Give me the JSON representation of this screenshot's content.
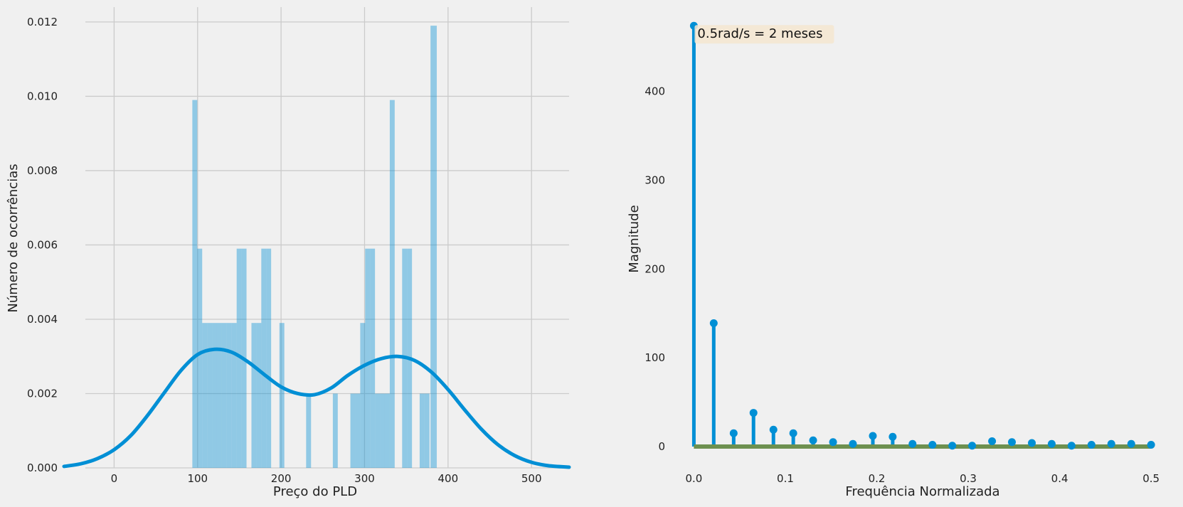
{
  "chart_data": [
    {
      "type": "bar",
      "subtype": "histogram-with-kde",
      "title": "",
      "xlabel": "Preço do PLD",
      "ylabel": "Número de ocorrências",
      "xlim": [
        -60,
        545
      ],
      "ylim": [
        0,
        0.0124
      ],
      "xticks": [
        0,
        100,
        200,
        300,
        400,
        500
      ],
      "xtick_labels": [
        "0",
        "100",
        "200",
        "300",
        "400",
        "500"
      ],
      "yticks": [
        0,
        0.002,
        0.004,
        0.006,
        0.008,
        0.01,
        0.012
      ],
      "ytick_labels": [
        "0.000",
        "0.002",
        "0.004",
        "0.006",
        "0.008",
        "0.010",
        "0.012"
      ],
      "grid": true,
      "bar_color": "#008fd5",
      "bar_alpha": 0.4,
      "bins": [
        {
          "x0": 93.7,
          "x1": 99.6,
          "value": 0.0099
        },
        {
          "x0": 99.6,
          "x1": 105.5,
          "value": 0.0059
        },
        {
          "x0": 105.5,
          "x1": 111.4,
          "value": 0.0039
        },
        {
          "x0": 111.4,
          "x1": 117.3,
          "value": 0.0039
        },
        {
          "x0": 117.3,
          "x1": 123.2,
          "value": 0.0039
        },
        {
          "x0": 123.2,
          "x1": 129.1,
          "value": 0.0039
        },
        {
          "x0": 129.1,
          "x1": 135.0,
          "value": 0.0039
        },
        {
          "x0": 135.0,
          "x1": 140.9,
          "value": 0.0039
        },
        {
          "x0": 140.9,
          "x1": 146.8,
          "value": 0.0039
        },
        {
          "x0": 146.8,
          "x1": 152.7,
          "value": 0.0059
        },
        {
          "x0": 152.7,
          "x1": 158.6,
          "value": 0.0059
        },
        {
          "x0": 164.5,
          "x1": 170.4,
          "value": 0.0039
        },
        {
          "x0": 170.4,
          "x1": 176.3,
          "value": 0.0039
        },
        {
          "x0": 176.3,
          "x1": 182.2,
          "value": 0.0059
        },
        {
          "x0": 182.2,
          "x1": 188.1,
          "value": 0.0059
        },
        {
          "x0": 198.0,
          "x1": 203.9,
          "value": 0.0039
        },
        {
          "x0": 230.0,
          "x1": 235.9,
          "value": 0.002
        },
        {
          "x0": 262.0,
          "x1": 267.9,
          "value": 0.002
        },
        {
          "x0": 283.0,
          "x1": 288.9,
          "value": 0.002
        },
        {
          "x0": 288.9,
          "x1": 294.8,
          "value": 0.002
        },
        {
          "x0": 294.8,
          "x1": 300.7,
          "value": 0.0039
        },
        {
          "x0": 300.7,
          "x1": 306.6,
          "value": 0.0059
        },
        {
          "x0": 306.6,
          "x1": 312.5,
          "value": 0.0059
        },
        {
          "x0": 312.5,
          "x1": 318.4,
          "value": 0.002
        },
        {
          "x0": 318.4,
          "x1": 324.3,
          "value": 0.002
        },
        {
          "x0": 324.3,
          "x1": 330.2,
          "value": 0.002
        },
        {
          "x0": 330.2,
          "x1": 336.1,
          "value": 0.0099
        },
        {
          "x0": 345.0,
          "x1": 350.9,
          "value": 0.0059
        },
        {
          "x0": 350.9,
          "x1": 356.8,
          "value": 0.0059
        },
        {
          "x0": 366.0,
          "x1": 371.9,
          "value": 0.002
        },
        {
          "x0": 371.9,
          "x1": 377.8,
          "value": 0.002
        },
        {
          "x0": 379.0,
          "x1": 384.9,
          "value": 0.0119
        },
        {
          "x0": 384.9,
          "x1": 386.5,
          "value": 0.0119
        }
      ],
      "kde": {
        "color": "#008fd5",
        "x": [
          -60,
          -40,
          -20,
          0,
          20,
          40,
          60,
          80,
          100,
          120,
          140,
          160,
          180,
          200,
          220,
          240,
          260,
          280,
          300,
          320,
          340,
          360,
          380,
          400,
          420,
          440,
          460,
          480,
          500,
          520,
          545
        ],
        "y": [
          4e-05,
          0.00011,
          0.00025,
          0.00049,
          0.00087,
          0.00141,
          0.00202,
          0.00262,
          0.00305,
          0.00319,
          0.00312,
          0.00286,
          0.00251,
          0.00218,
          0.002,
          0.00197,
          0.00215,
          0.00249,
          0.00276,
          0.00294,
          0.003,
          0.00289,
          0.00258,
          0.00211,
          0.00156,
          0.00104,
          0.00062,
          0.00033,
          0.00015,
          6e-05,
          2e-05
        ]
      }
    },
    {
      "type": "stem",
      "title": "",
      "xlabel": "Frequência Normalizada",
      "ylabel": "Magnitude",
      "xlim": [
        -0.005,
        0.51
      ],
      "ylim": [
        -8,
        495
      ],
      "xticks": [
        0.0,
        0.1,
        0.2,
        0.3,
        0.4,
        0.5
      ],
      "xtick_labels": [
        "0.0",
        "0.1",
        "0.2",
        "0.3",
        "0.4",
        "0.5"
      ],
      "yticks": [
        0,
        100,
        200,
        300,
        400
      ],
      "ytick_labels": [
        "0",
        "100",
        "200",
        "300",
        "400"
      ],
      "grid": false,
      "stem_color": "#008fd5",
      "baseline_color": "#6d904f",
      "x": [
        0.0,
        0.0217,
        0.0435,
        0.0652,
        0.087,
        0.1087,
        0.1304,
        0.1522,
        0.1739,
        0.1957,
        0.2174,
        0.2391,
        0.2609,
        0.2826,
        0.3043,
        0.3261,
        0.3478,
        0.3696,
        0.3913,
        0.413,
        0.4348,
        0.4565,
        0.4783,
        0.5
      ],
      "values": [
        474,
        139,
        15,
        38,
        19,
        15,
        7,
        5,
        3,
        12,
        11,
        3,
        2,
        1,
        1,
        6,
        5,
        4,
        3,
        1,
        2,
        3,
        3,
        2
      ],
      "annotation": {
        "text": "0.5rad/s = 2 meses",
        "x": 0.0,
        "y": 474,
        "box_color": "#f5e6d0"
      }
    }
  ]
}
